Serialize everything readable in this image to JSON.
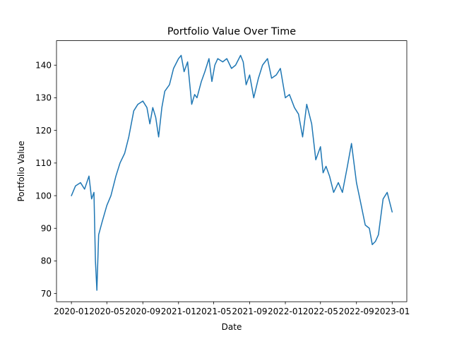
{
  "chart_data": {
    "type": "line",
    "title": "Portfolio Value Over Time",
    "xlabel": "Date",
    "ylabel": "Portfolio Value",
    "xlim": [
      "2019-11-11",
      "2023-02-20"
    ],
    "ylim": [
      67.5,
      147.5
    ],
    "x_ticks": [
      "2020-01",
      "2020-05",
      "2020-09",
      "2021-01",
      "2021-05",
      "2021-09",
      "2022-01",
      "2022-05",
      "2022-09",
      "2023-01"
    ],
    "y_ticks": [
      70,
      80,
      90,
      100,
      110,
      120,
      130,
      140
    ],
    "grid": false,
    "legend": "none",
    "series": [
      {
        "color": "#1f77b4",
        "x": [
          "2020-01-01",
          "2020-01-15",
          "2020-02-01",
          "2020-02-15",
          "2020-03-01",
          "2020-03-10",
          "2020-03-18",
          "2020-03-23",
          "2020-03-28",
          "2020-04-03",
          "2020-04-15",
          "2020-05-01",
          "2020-05-15",
          "2020-06-01",
          "2020-06-15",
          "2020-07-01",
          "2020-07-15",
          "2020-08-01",
          "2020-08-15",
          "2020-09-01",
          "2020-09-15",
          "2020-09-25",
          "2020-10-05",
          "2020-10-15",
          "2020-10-25",
          "2020-11-05",
          "2020-11-15",
          "2020-12-01",
          "2020-12-15",
          "2021-01-01",
          "2021-01-10",
          "2021-01-20",
          "2021-02-01",
          "2021-02-15",
          "2021-02-25",
          "2021-03-05",
          "2021-03-20",
          "2021-04-01",
          "2021-04-15",
          "2021-04-25",
          "2021-05-05",
          "2021-05-15",
          "2021-06-01",
          "2021-06-15",
          "2021-07-01",
          "2021-07-15",
          "2021-08-01",
          "2021-08-10",
          "2021-08-20",
          "2021-09-01",
          "2021-09-15",
          "2021-10-01",
          "2021-10-15",
          "2021-11-01",
          "2021-11-15",
          "2021-12-01",
          "2021-12-15",
          "2022-01-01",
          "2022-01-15",
          "2022-02-01",
          "2022-02-15",
          "2022-03-01",
          "2022-03-15",
          "2022-04-01",
          "2022-04-15",
          "2022-05-01",
          "2022-05-10",
          "2022-05-20",
          "2022-06-01",
          "2022-06-15",
          "2022-07-01",
          "2022-07-15",
          "2022-08-01",
          "2022-08-15",
          "2022-09-01",
          "2022-09-15",
          "2022-10-01",
          "2022-10-15",
          "2022-10-25",
          "2022-11-05",
          "2022-11-15",
          "2022-12-01",
          "2022-12-15",
          "2023-01-01"
        ],
        "y": [
          100,
          103,
          104,
          102,
          106,
          99,
          101,
          80,
          71,
          88,
          92,
          97,
          100,
          106,
          110,
          113,
          118,
          126,
          128,
          129,
          127,
          122,
          127,
          124,
          118,
          127,
          132,
          134,
          139,
          142,
          143,
          138,
          141,
          128,
          131,
          130,
          135,
          138,
          142,
          135,
          140,
          142,
          141,
          142,
          139,
          140,
          143,
          141,
          134,
          137,
          130,
          136,
          140,
          142,
          136,
          137,
          139,
          130,
          131,
          127,
          125,
          118,
          128,
          122,
          111,
          115,
          107,
          109,
          106,
          101,
          104,
          101,
          109,
          116,
          104,
          98,
          91,
          90,
          85,
          86,
          88,
          99,
          101,
          95
        ]
      }
    ]
  }
}
